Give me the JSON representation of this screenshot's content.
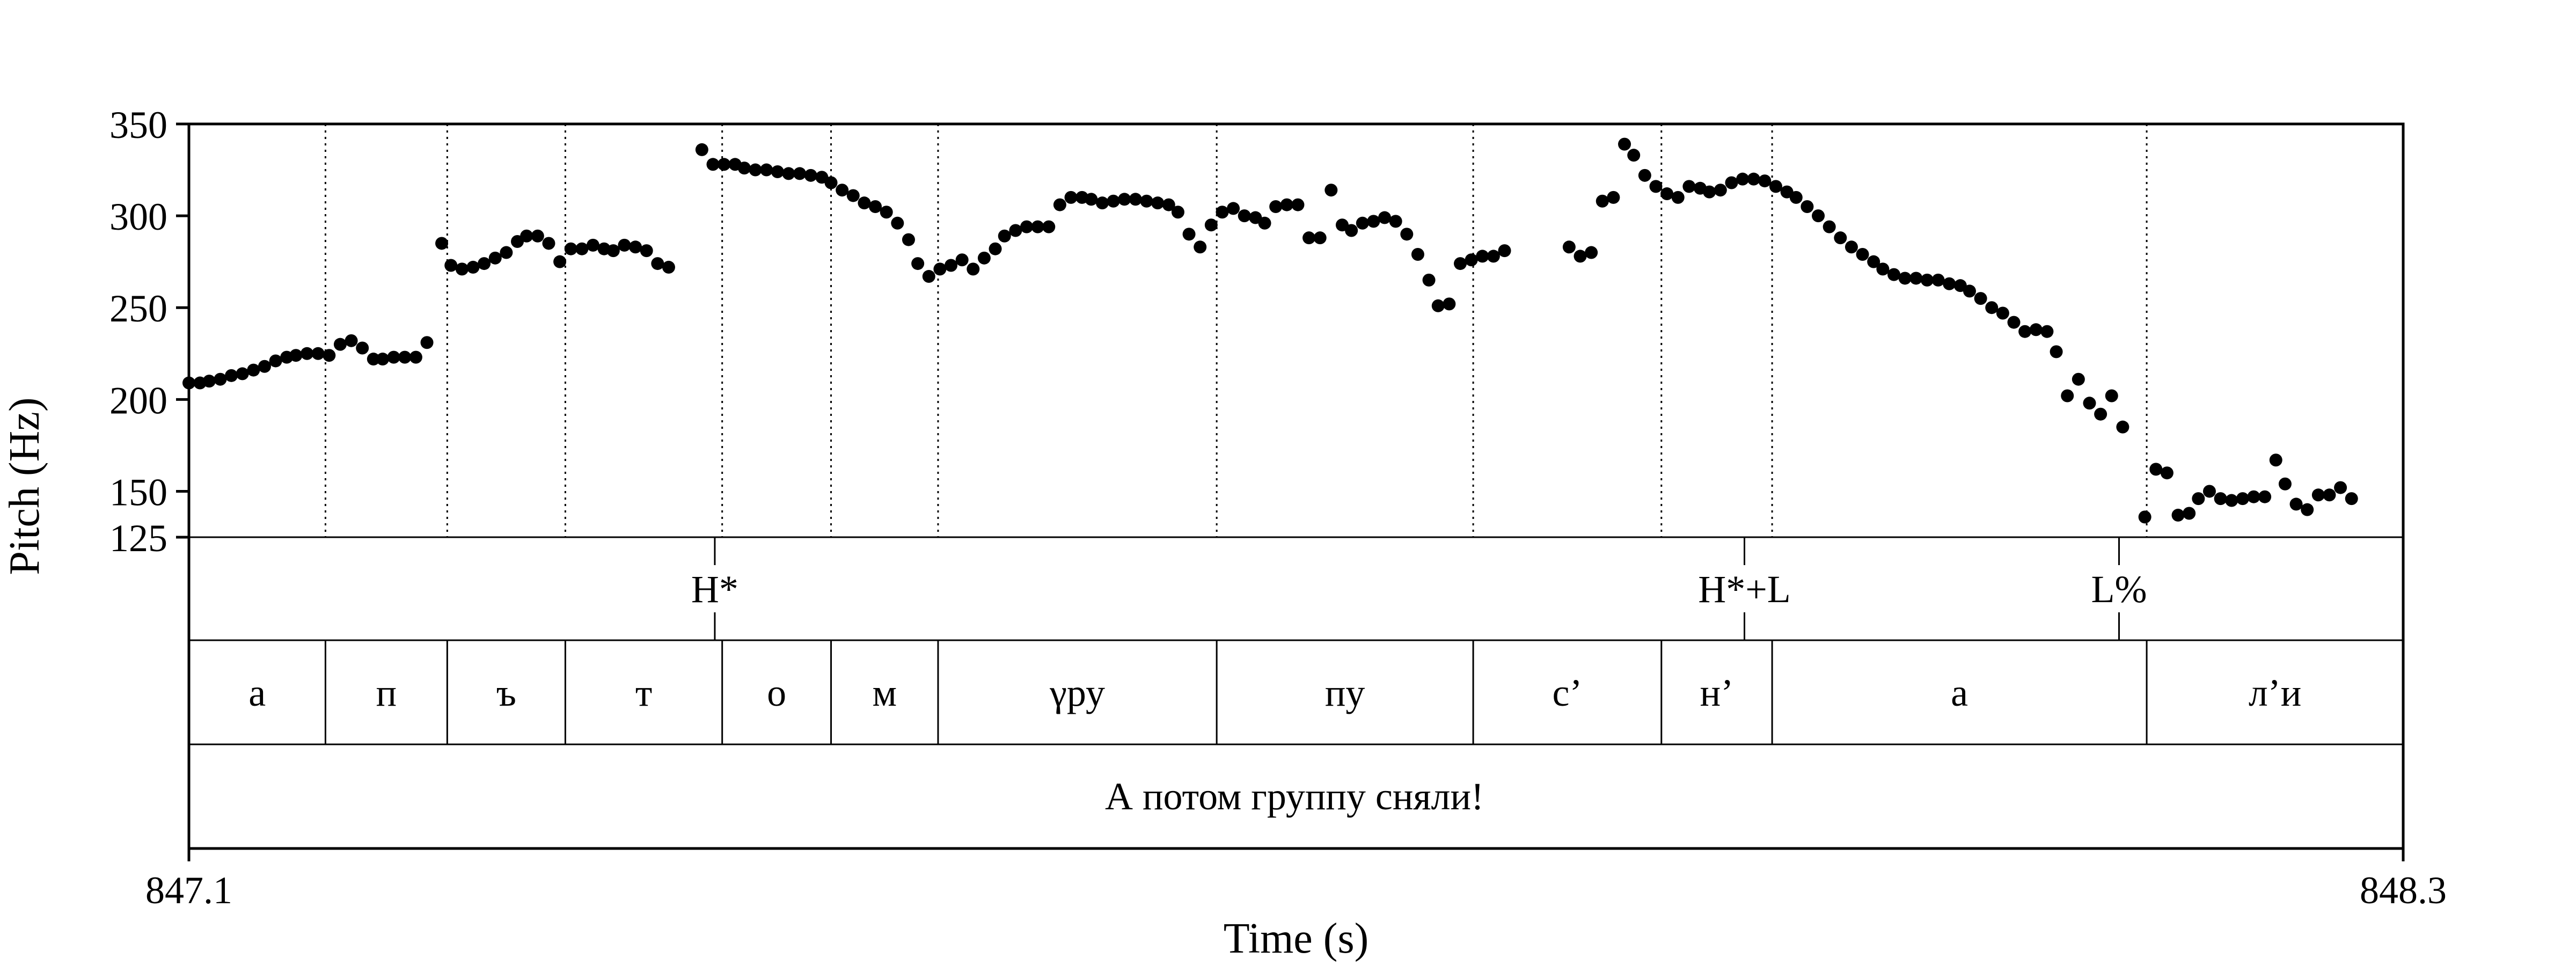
{
  "chart_data": {
    "type": "scatter",
    "xlabel": "Time (s)",
    "ylabel": "Pitch (Hz)",
    "xlim": [
      847.1,
      848.3
    ],
    "ylim": [
      125,
      350
    ],
    "x_tick_labels": [
      "847.1",
      "848.3"
    ],
    "y_ticks": [
      125,
      150,
      200,
      250,
      300,
      350
    ],
    "y_scale": "linear",
    "grid": "none",
    "legend": "none",
    "marker_color": "#000000",
    "pitch_points": [
      [
        847.1,
        209
      ],
      [
        847.106,
        209
      ],
      [
        847.111,
        210
      ],
      [
        847.117,
        211
      ],
      [
        847.123,
        213
      ],
      [
        847.129,
        214
      ],
      [
        847.135,
        216
      ],
      [
        847.141,
        218
      ],
      [
        847.147,
        221
      ],
      [
        847.153,
        223
      ],
      [
        847.158,
        224
      ],
      [
        847.164,
        225
      ],
      [
        847.17,
        225
      ],
      [
        847.176,
        224
      ],
      [
        847.182,
        230
      ],
      [
        847.188,
        232
      ],
      [
        847.194,
        228
      ],
      [
        847.2,
        222
      ],
      [
        847.205,
        222
      ],
      [
        847.211,
        223
      ],
      [
        847.217,
        223
      ],
      [
        847.223,
        223
      ],
      [
        847.229,
        231
      ],
      [
        847.237,
        285
      ],
      [
        847.242,
        273
      ],
      [
        847.248,
        271
      ],
      [
        847.254,
        272
      ],
      [
        847.26,
        274
      ],
      [
        847.266,
        277
      ],
      [
        847.272,
        280
      ],
      [
        847.278,
        286
      ],
      [
        847.283,
        289
      ],
      [
        847.289,
        289
      ],
      [
        847.295,
        285
      ],
      [
        847.301,
        275
      ],
      [
        847.307,
        282
      ],
      [
        847.313,
        282
      ],
      [
        847.319,
        284
      ],
      [
        847.325,
        282
      ],
      [
        847.33,
        281
      ],
      [
        847.336,
        284
      ],
      [
        847.342,
        283
      ],
      [
        847.348,
        281
      ],
      [
        847.354,
        274
      ],
      [
        847.36,
        272
      ],
      [
        847.378,
        336
      ],
      [
        847.384,
        328
      ],
      [
        847.39,
        328
      ],
      [
        847.396,
        328
      ],
      [
        847.401,
        326
      ],
      [
        847.407,
        325
      ],
      [
        847.413,
        325
      ],
      [
        847.419,
        324
      ],
      [
        847.425,
        323
      ],
      [
        847.431,
        323
      ],
      [
        847.437,
        322
      ],
      [
        847.443,
        321
      ],
      [
        847.448,
        318
      ],
      [
        847.454,
        314
      ],
      [
        847.46,
        311
      ],
      [
        847.466,
        307
      ],
      [
        847.472,
        305
      ],
      [
        847.478,
        302
      ],
      [
        847.484,
        296
      ],
      [
        847.49,
        287
      ],
      [
        847.495,
        274
      ],
      [
        847.501,
        267
      ],
      [
        847.507,
        271
      ],
      [
        847.513,
        273
      ],
      [
        847.519,
        276
      ],
      [
        847.525,
        271
      ],
      [
        847.531,
        277
      ],
      [
        847.537,
        282
      ],
      [
        847.542,
        289
      ],
      [
        847.548,
        292
      ],
      [
        847.554,
        294
      ],
      [
        847.56,
        294
      ],
      [
        847.566,
        294
      ],
      [
        847.572,
        306
      ],
      [
        847.578,
        310
      ],
      [
        847.584,
        310
      ],
      [
        847.589,
        309
      ],
      [
        847.595,
        307
      ],
      [
        847.601,
        308
      ],
      [
        847.607,
        309
      ],
      [
        847.613,
        309
      ],
      [
        847.619,
        308
      ],
      [
        847.625,
        307
      ],
      [
        847.631,
        306
      ],
      [
        847.636,
        302
      ],
      [
        847.642,
        290
      ],
      [
        847.648,
        283
      ],
      [
        847.654,
        295
      ],
      [
        847.66,
        302
      ],
      [
        847.666,
        304
      ],
      [
        847.672,
        300
      ],
      [
        847.678,
        299
      ],
      [
        847.683,
        296
      ],
      [
        847.689,
        305
      ],
      [
        847.695,
        306
      ],
      [
        847.701,
        306
      ],
      [
        847.707,
        288
      ],
      [
        847.713,
        288
      ],
      [
        847.719,
        314
      ],
      [
        847.725,
        295
      ],
      [
        847.73,
        292
      ],
      [
        847.736,
        296
      ],
      [
        847.742,
        297
      ],
      [
        847.748,
        299
      ],
      [
        847.754,
        297
      ],
      [
        847.76,
        290
      ],
      [
        847.766,
        279
      ],
      [
        847.772,
        265
      ],
      [
        847.777,
        251
      ],
      [
        847.783,
        252
      ],
      [
        847.789,
        274
      ],
      [
        847.795,
        276
      ],
      [
        847.801,
        278
      ],
      [
        847.807,
        278
      ],
      [
        847.813,
        281
      ],
      [
        847.848,
        283
      ],
      [
        847.854,
        278
      ],
      [
        847.86,
        280
      ],
      [
        847.866,
        308
      ],
      [
        847.872,
        310
      ],
      [
        847.878,
        339
      ],
      [
        847.883,
        333
      ],
      [
        847.889,
        322
      ],
      [
        847.895,
        316
      ],
      [
        847.901,
        312
      ],
      [
        847.907,
        310
      ],
      [
        847.913,
        316
      ],
      [
        847.919,
        315
      ],
      [
        847.924,
        313
      ],
      [
        847.93,
        314
      ],
      [
        847.936,
        318
      ],
      [
        847.942,
        320
      ],
      [
        847.948,
        320
      ],
      [
        847.954,
        319
      ],
      [
        847.96,
        316
      ],
      [
        847.966,
        313
      ],
      [
        847.971,
        310
      ],
      [
        847.977,
        305
      ],
      [
        847.983,
        300
      ],
      [
        847.989,
        294
      ],
      [
        847.995,
        288
      ],
      [
        848.001,
        283
      ],
      [
        848.007,
        279
      ],
      [
        848.013,
        275
      ],
      [
        848.018,
        271
      ],
      [
        848.024,
        268
      ],
      [
        848.03,
        266
      ],
      [
        848.036,
        266
      ],
      [
        848.042,
        265
      ],
      [
        848.048,
        265
      ],
      [
        848.054,
        263
      ],
      [
        848.06,
        262
      ],
      [
        848.065,
        259
      ],
      [
        848.071,
        255
      ],
      [
        848.077,
        250
      ],
      [
        848.083,
        247
      ],
      [
        848.089,
        242
      ],
      [
        848.095,
        237
      ],
      [
        848.101,
        238
      ],
      [
        848.107,
        237
      ],
      [
        848.112,
        226
      ],
      [
        848.118,
        202
      ],
      [
        848.124,
        211
      ],
      [
        848.13,
        198
      ],
      [
        848.136,
        192
      ],
      [
        848.142,
        202
      ],
      [
        848.148,
        185
      ],
      [
        848.16,
        136
      ],
      [
        848.166,
        162
      ],
      [
        848.172,
        160
      ],
      [
        848.178,
        137
      ],
      [
        848.184,
        138
      ],
      [
        848.189,
        146
      ],
      [
        848.195,
        150
      ],
      [
        848.201,
        146
      ],
      [
        848.207,
        145
      ],
      [
        848.213,
        146
      ],
      [
        848.219,
        147
      ],
      [
        848.225,
        147
      ],
      [
        848.231,
        167
      ],
      [
        848.236,
        154
      ],
      [
        848.242,
        143
      ],
      [
        848.248,
        140
      ],
      [
        848.254,
        148
      ],
      [
        848.26,
        148
      ],
      [
        848.266,
        152
      ],
      [
        848.272,
        146
      ]
    ],
    "tiers": [
      {
        "name": "tones",
        "points": [
          {
            "time": 847.385,
            "label": "H*"
          },
          {
            "time": 847.943,
            "label": "H*+L"
          },
          {
            "time": 848.146,
            "label": "L%"
          }
        ]
      },
      {
        "name": "segments",
        "boundaries": [
          847.1,
          847.174,
          847.24,
          847.304,
          847.389,
          847.448,
          847.506,
          847.657,
          847.796,
          847.898,
          847.958,
          848.161,
          848.3
        ],
        "labels": [
          "а",
          "п",
          "ъ",
          "т",
          "о",
          "м",
          "γру",
          "пу",
          "с’",
          "н’",
          "а",
          "л’и"
        ]
      },
      {
        "name": "utterance",
        "label": "А потом группу сняли!"
      }
    ]
  }
}
